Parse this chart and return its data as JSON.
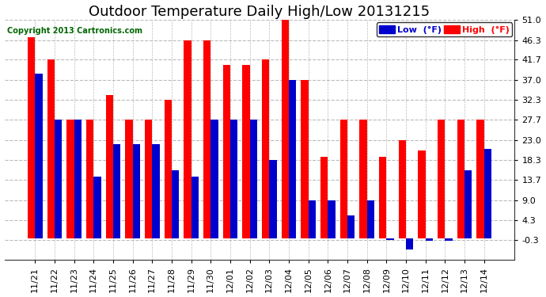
{
  "title": "Outdoor Temperature Daily High/Low 20131215",
  "copyright": "Copyright 2013 Cartronics.com",
  "categories": [
    "11/21",
    "11/22",
    "11/23",
    "11/24",
    "11/25",
    "11/26",
    "11/27",
    "11/28",
    "11/29",
    "11/30",
    "12/01",
    "12/02",
    "12/03",
    "12/04",
    "12/05",
    "12/06",
    "12/07",
    "12/08",
    "12/09",
    "12/10",
    "12/11",
    "12/12",
    "12/13",
    "12/14"
  ],
  "high_values": [
    47.0,
    41.7,
    27.7,
    27.7,
    33.5,
    27.7,
    27.7,
    32.3,
    46.3,
    46.3,
    40.5,
    40.5,
    41.7,
    51.0,
    37.0,
    19.0,
    27.7,
    27.7,
    19.0,
    23.0,
    20.5,
    27.7,
    27.7,
    27.7
  ],
  "low_values": [
    38.5,
    27.7,
    27.7,
    14.5,
    22.0,
    22.0,
    22.0,
    16.0,
    14.5,
    27.7,
    27.7,
    27.7,
    18.3,
    37.0,
    9.0,
    9.0,
    5.5,
    9.0,
    -0.3,
    -2.5,
    -0.5,
    -0.5,
    16.0,
    21.0
  ],
  "bar_width": 0.38,
  "high_color": "#FF0000",
  "low_color": "#0000CD",
  "bg_color": "#FFFFFF",
  "plot_bg_color": "#FFFFFF",
  "grid_color": "#BBBBBB",
  "ylim_min": -5.0,
  "ylim_max": 51.0,
  "yticks": [
    -0.3,
    4.3,
    9.0,
    13.7,
    18.3,
    23.0,
    27.7,
    32.3,
    37.0,
    41.7,
    46.3,
    51.0
  ],
  "title_fontsize": 13,
  "tick_fontsize": 8,
  "legend_low_label": "Low  (°F)",
  "legend_high_label": "High  (°F)",
  "copyright_color": "#006600"
}
